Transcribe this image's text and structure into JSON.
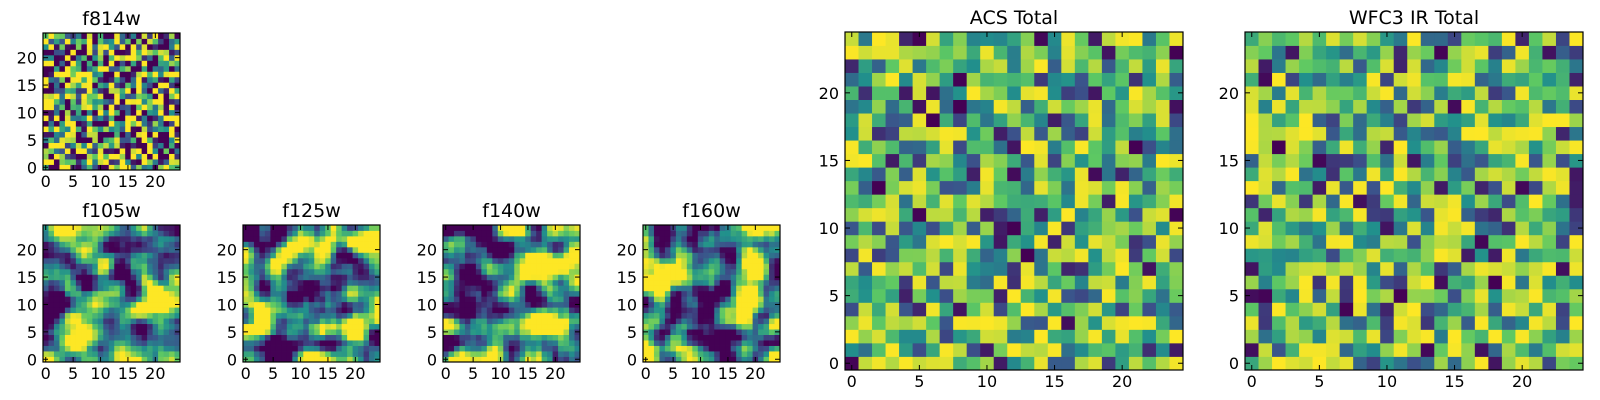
{
  "figure": {
    "description_panels": 7
  },
  "palette": {
    "colormap": "viridis",
    "stops": [
      "#440154",
      "#3b528b",
      "#21908c",
      "#5dc863",
      "#fde725"
    ],
    "frame": "#000000"
  },
  "chart_data": [
    {
      "type": "heatmap",
      "title": "f814w",
      "grid_size": 25,
      "xticks": [
        0,
        5,
        10,
        15,
        20
      ],
      "yticks": [
        0,
        5,
        10,
        15,
        20
      ],
      "xlim": [
        -0.5,
        24.5
      ],
      "ylim": [
        -0.5,
        24.5
      ],
      "value_range": [
        0,
        1
      ],
      "pattern": "pixel-scale noise",
      "seed": 814,
      "smoothing": 0,
      "contrast": 1.7
    },
    {
      "type": "heatmap",
      "title": "f105w",
      "grid_size": 25,
      "xticks": [
        0,
        5,
        10,
        15,
        20
      ],
      "yticks": [
        0,
        5,
        10,
        15,
        20
      ],
      "xlim": [
        -0.5,
        24.5
      ],
      "ylim": [
        -0.5,
        24.5
      ],
      "value_range": [
        0,
        1
      ],
      "pattern": "smoothed noise",
      "seed": 105,
      "smoothing": 2,
      "contrast": 1.9
    },
    {
      "type": "heatmap",
      "title": "f125w",
      "grid_size": 25,
      "xticks": [
        0,
        5,
        10,
        15,
        20
      ],
      "yticks": [
        0,
        5,
        10,
        15,
        20
      ],
      "xlim": [
        -0.5,
        24.5
      ],
      "ylim": [
        -0.5,
        24.5
      ],
      "value_range": [
        0,
        1
      ],
      "pattern": "smoothed noise",
      "seed": 125,
      "smoothing": 2,
      "contrast": 1.9
    },
    {
      "type": "heatmap",
      "title": "f140w",
      "grid_size": 25,
      "xticks": [
        0,
        5,
        10,
        15,
        20
      ],
      "yticks": [
        0,
        5,
        10,
        15,
        20
      ],
      "xlim": [
        -0.5,
        24.5
      ],
      "ylim": [
        -0.5,
        24.5
      ],
      "value_range": [
        0,
        1
      ],
      "pattern": "smoothed noise",
      "seed": 140,
      "smoothing": 2,
      "contrast": 1.9
    },
    {
      "type": "heatmap",
      "title": "f160w",
      "grid_size": 25,
      "xticks": [
        0,
        5,
        10,
        15,
        20
      ],
      "yticks": [
        0,
        5,
        10,
        15,
        20
      ],
      "xlim": [
        -0.5,
        24.5
      ],
      "ylim": [
        -0.5,
        24.5
      ],
      "value_range": [
        0,
        1
      ],
      "pattern": "smoothed noise",
      "seed": 160,
      "smoothing": 2,
      "contrast": 1.9
    },
    {
      "type": "heatmap",
      "title": "ACS Total",
      "grid_size": 25,
      "xticks": [
        0,
        5,
        10,
        15,
        20
      ],
      "yticks": [
        0,
        5,
        10,
        15,
        20
      ],
      "xlim": [
        -0.5,
        24.5
      ],
      "ylim": [
        -0.5,
        24.5
      ],
      "value_range": [
        0,
        1
      ],
      "pattern": "pixel-scale noise, mostly green-yellow with sparse dark pixels",
      "seed": 2001,
      "smoothing": 0,
      "contrast": 1.0,
      "skew": 0.6
    },
    {
      "type": "heatmap",
      "title": "WFC3 IR Total",
      "grid_size": 25,
      "xticks": [
        0,
        5,
        10,
        15,
        20
      ],
      "yticks": [
        0,
        5,
        10,
        15,
        20
      ],
      "xlim": [
        -0.5,
        24.5
      ],
      "ylim": [
        -0.5,
        24.5
      ],
      "value_range": [
        0,
        1
      ],
      "pattern": "pixel-scale noise, mostly green with sparse dark pixels",
      "seed": 3003,
      "smoothing": 0,
      "contrast": 1.0,
      "skew": 0.7
    }
  ]
}
